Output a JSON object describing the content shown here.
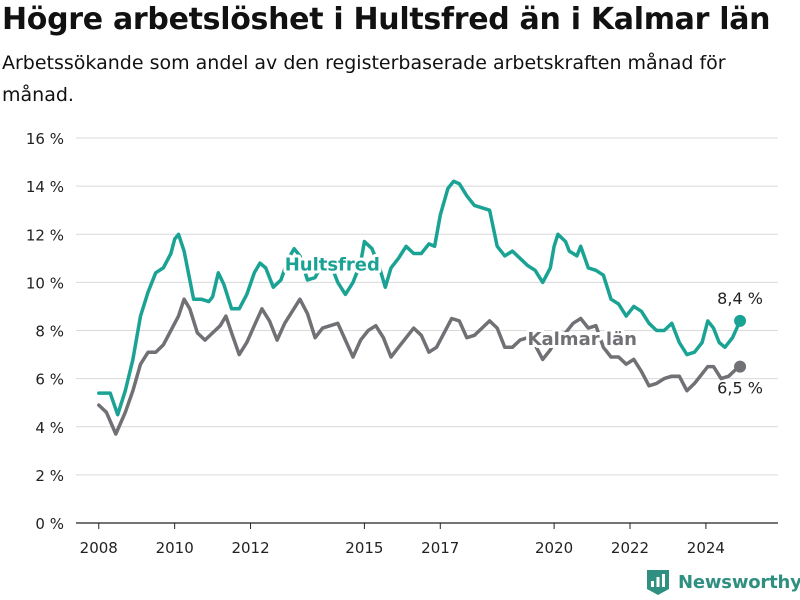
{
  "header": {
    "title": "Högre arbetslöshet i Hultsfred än i Kalmar län",
    "subtitle": "Arbetssökande som andel av den registerbaserade arbetskraften månad för månad."
  },
  "brand": {
    "name": "Newsworthy",
    "icon": "newsworthy-logo-icon",
    "color": "#2f8f80"
  },
  "chart_data": {
    "type": "line",
    "xlim": [
      2007.4,
      2025.9
    ],
    "ylim": [
      0,
      16
    ],
    "y_ticks": [
      0,
      2,
      4,
      6,
      8,
      10,
      12,
      14,
      16
    ],
    "y_tick_labels": [
      "0 %",
      "2 %",
      "4 %",
      "6 %",
      "8 %",
      "10 %",
      "12 %",
      "14 %",
      "16 %"
    ],
    "x_ticks": [
      2008,
      2010,
      2012,
      2015,
      2017,
      2020,
      2022,
      2024
    ],
    "x_tick_labels": [
      "2008",
      "2010",
      "2012",
      "2015",
      "2017",
      "2020",
      "2022",
      "2024"
    ],
    "grid": "horizontal",
    "series": [
      {
        "name": "Hultsfred",
        "color": "#1aa394",
        "label_at": [
          2012.9,
          10.5
        ],
        "end_label": "8,4 %",
        "points": [
          [
            2008.0,
            5.4
          ],
          [
            2008.3,
            5.4
          ],
          [
            2008.5,
            4.5
          ],
          [
            2008.7,
            5.5
          ],
          [
            2008.9,
            6.8
          ],
          [
            2009.1,
            8.6
          ],
          [
            2009.3,
            9.6
          ],
          [
            2009.5,
            10.4
          ],
          [
            2009.7,
            10.6
          ],
          [
            2009.9,
            11.2
          ],
          [
            2010.0,
            11.8
          ],
          [
            2010.1,
            12.0
          ],
          [
            2010.25,
            11.3
          ],
          [
            2010.5,
            9.3
          ],
          [
            2010.7,
            9.3
          ],
          [
            2010.9,
            9.2
          ],
          [
            2011.0,
            9.4
          ],
          [
            2011.15,
            10.4
          ],
          [
            2011.3,
            9.9
          ],
          [
            2011.5,
            8.9
          ],
          [
            2011.7,
            8.9
          ],
          [
            2011.9,
            9.5
          ],
          [
            2012.1,
            10.4
          ],
          [
            2012.25,
            10.8
          ],
          [
            2012.4,
            10.6
          ],
          [
            2012.6,
            9.8
          ],
          [
            2012.8,
            10.1
          ],
          [
            2013.0,
            11.0
          ],
          [
            2013.15,
            11.4
          ],
          [
            2013.3,
            11.1
          ],
          [
            2013.5,
            10.1
          ],
          [
            2013.7,
            10.2
          ],
          [
            2013.9,
            10.8
          ],
          [
            2014.1,
            10.8
          ],
          [
            2014.3,
            10.0
          ],
          [
            2014.5,
            9.5
          ],
          [
            2014.7,
            10.0
          ],
          [
            2014.9,
            10.8
          ],
          [
            2015.0,
            11.7
          ],
          [
            2015.2,
            11.4
          ],
          [
            2015.4,
            10.6
          ],
          [
            2015.55,
            9.8
          ],
          [
            2015.7,
            10.6
          ],
          [
            2015.9,
            11.0
          ],
          [
            2016.1,
            11.5
          ],
          [
            2016.3,
            11.2
          ],
          [
            2016.5,
            11.2
          ],
          [
            2016.7,
            11.6
          ],
          [
            2016.85,
            11.5
          ],
          [
            2017.0,
            12.8
          ],
          [
            2017.2,
            13.9
          ],
          [
            2017.35,
            14.2
          ],
          [
            2017.5,
            14.1
          ],
          [
            2017.7,
            13.6
          ],
          [
            2017.9,
            13.2
          ],
          [
            2018.1,
            13.1
          ],
          [
            2018.3,
            13.0
          ],
          [
            2018.5,
            11.5
          ],
          [
            2018.7,
            11.1
          ],
          [
            2018.9,
            11.3
          ],
          [
            2019.1,
            11.0
          ],
          [
            2019.3,
            10.7
          ],
          [
            2019.5,
            10.5
          ],
          [
            2019.7,
            10.0
          ],
          [
            2019.9,
            10.6
          ],
          [
            2020.0,
            11.5
          ],
          [
            2020.1,
            12.0
          ],
          [
            2020.3,
            11.7
          ],
          [
            2020.4,
            11.3
          ],
          [
            2020.6,
            11.1
          ],
          [
            2020.7,
            11.5
          ],
          [
            2020.9,
            10.6
          ],
          [
            2021.1,
            10.5
          ],
          [
            2021.3,
            10.3
          ],
          [
            2021.5,
            9.3
          ],
          [
            2021.7,
            9.1
          ],
          [
            2021.9,
            8.6
          ],
          [
            2022.1,
            9.0
          ],
          [
            2022.3,
            8.8
          ],
          [
            2022.5,
            8.3
          ],
          [
            2022.7,
            8.0
          ],
          [
            2022.9,
            8.0
          ],
          [
            2023.1,
            8.3
          ],
          [
            2023.3,
            7.5
          ],
          [
            2023.5,
            7.0
          ],
          [
            2023.7,
            7.1
          ],
          [
            2023.9,
            7.5
          ],
          [
            2024.05,
            8.4
          ],
          [
            2024.2,
            8.1
          ],
          [
            2024.35,
            7.5
          ],
          [
            2024.5,
            7.3
          ],
          [
            2024.7,
            7.7
          ],
          [
            2024.9,
            8.4
          ]
        ]
      },
      {
        "name": "Kalmar län",
        "color": "#707075",
        "label_at": [
          2019.3,
          7.4
        ],
        "end_label": "6,5 %",
        "points": [
          [
            2008.0,
            4.9
          ],
          [
            2008.2,
            4.6
          ],
          [
            2008.45,
            3.7
          ],
          [
            2008.7,
            4.6
          ],
          [
            2008.9,
            5.5
          ],
          [
            2009.1,
            6.6
          ],
          [
            2009.3,
            7.1
          ],
          [
            2009.5,
            7.1
          ],
          [
            2009.7,
            7.4
          ],
          [
            2009.9,
            8.0
          ],
          [
            2010.1,
            8.6
          ],
          [
            2010.25,
            9.3
          ],
          [
            2010.4,
            8.9
          ],
          [
            2010.6,
            7.9
          ],
          [
            2010.8,
            7.6
          ],
          [
            2011.0,
            7.9
          ],
          [
            2011.2,
            8.2
          ],
          [
            2011.35,
            8.6
          ],
          [
            2011.5,
            7.9
          ],
          [
            2011.7,
            7.0
          ],
          [
            2011.9,
            7.5
          ],
          [
            2012.1,
            8.2
          ],
          [
            2012.3,
            8.9
          ],
          [
            2012.5,
            8.4
          ],
          [
            2012.7,
            7.6
          ],
          [
            2012.9,
            8.3
          ],
          [
            2013.1,
            8.8
          ],
          [
            2013.3,
            9.3
          ],
          [
            2013.5,
            8.7
          ],
          [
            2013.7,
            7.7
          ],
          [
            2013.9,
            8.1
          ],
          [
            2014.1,
            8.2
          ],
          [
            2014.3,
            8.3
          ],
          [
            2014.5,
            7.6
          ],
          [
            2014.7,
            6.9
          ],
          [
            2014.9,
            7.6
          ],
          [
            2015.1,
            8.0
          ],
          [
            2015.3,
            8.2
          ],
          [
            2015.5,
            7.7
          ],
          [
            2015.7,
            6.9
          ],
          [
            2015.9,
            7.3
          ],
          [
            2016.1,
            7.7
          ],
          [
            2016.3,
            8.1
          ],
          [
            2016.5,
            7.8
          ],
          [
            2016.7,
            7.1
          ],
          [
            2016.9,
            7.3
          ],
          [
            2017.1,
            7.9
          ],
          [
            2017.3,
            8.5
          ],
          [
            2017.5,
            8.4
          ],
          [
            2017.7,
            7.7
          ],
          [
            2017.9,
            7.8
          ],
          [
            2018.1,
            8.1
          ],
          [
            2018.3,
            8.4
          ],
          [
            2018.5,
            8.1
          ],
          [
            2018.7,
            7.3
          ],
          [
            2018.9,
            7.3
          ],
          [
            2019.1,
            7.6
          ],
          [
            2019.3,
            7.7
          ],
          [
            2019.5,
            7.4
          ],
          [
            2019.7,
            6.8
          ],
          [
            2019.9,
            7.2
          ],
          [
            2020.1,
            7.8
          ],
          [
            2020.3,
            7.9
          ],
          [
            2020.5,
            8.3
          ],
          [
            2020.7,
            8.5
          ],
          [
            2020.9,
            8.1
          ],
          [
            2021.1,
            8.2
          ],
          [
            2021.3,
            7.3
          ],
          [
            2021.5,
            6.9
          ],
          [
            2021.7,
            6.9
          ],
          [
            2021.9,
            6.6
          ],
          [
            2022.1,
            6.8
          ],
          [
            2022.3,
            6.3
          ],
          [
            2022.5,
            5.7
          ],
          [
            2022.7,
            5.8
          ],
          [
            2022.9,
            6.0
          ],
          [
            2023.1,
            6.1
          ],
          [
            2023.3,
            6.1
          ],
          [
            2023.5,
            5.5
          ],
          [
            2023.7,
            5.8
          ],
          [
            2023.9,
            6.2
          ],
          [
            2024.05,
            6.5
          ],
          [
            2024.2,
            6.5
          ],
          [
            2024.4,
            6.0
          ],
          [
            2024.6,
            6.1
          ],
          [
            2024.8,
            6.4
          ],
          [
            2024.9,
            6.5
          ]
        ]
      }
    ]
  }
}
